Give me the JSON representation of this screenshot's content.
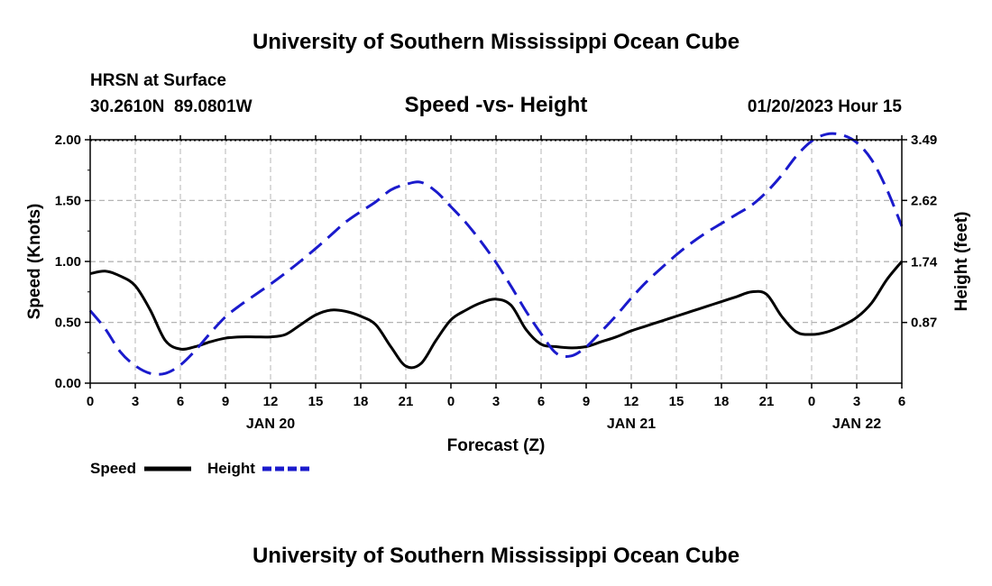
{
  "header": {
    "title": "University of Southern Mississippi Ocean Cube",
    "station": "HRSN at Surface",
    "coords": "30.2610N  89.0801W",
    "chart_title": "Speed -vs- Height",
    "datetime": "01/20/2023 Hour 15"
  },
  "footer": {
    "title": "University of Southern Mississippi Ocean Cube"
  },
  "legend": {
    "speed_label": "Speed",
    "height_label": "Height"
  },
  "colors": {
    "speed": "#000000",
    "height": "#1a1acc",
    "grid": "#b4b4b4"
  },
  "chart_data": {
    "type": "line",
    "title": "Speed -vs- Height",
    "xlabel": "Forecast (Z)",
    "ylabel": "Speed (Knots)",
    "y2label": "Height (feet)",
    "x": [
      0,
      1,
      2,
      3,
      4,
      5,
      6,
      7,
      8,
      9,
      10,
      11,
      12,
      13,
      14,
      15,
      16,
      17,
      18,
      19,
      20,
      21,
      22,
      23,
      24,
      25,
      26,
      27,
      28,
      29,
      30,
      31,
      32,
      33,
      34,
      35,
      36,
      37,
      38,
      39,
      40,
      41,
      42,
      43,
      44,
      45,
      46,
      47,
      48,
      49,
      50,
      51,
      52,
      53,
      54
    ],
    "x_ticks": [
      0,
      3,
      6,
      9,
      12,
      15,
      18,
      21,
      24,
      27,
      30,
      33,
      36,
      39,
      42,
      45,
      48,
      51,
      54
    ],
    "x_tick_labels": [
      "0",
      "3",
      "6",
      "9",
      "12",
      "15",
      "18",
      "21",
      "0",
      "3",
      "6",
      "9",
      "12",
      "15",
      "18",
      "21",
      "0",
      "3",
      "6"
    ],
    "day_labels": [
      {
        "x": 12,
        "label": "JAN 20"
      },
      {
        "x": 36,
        "label": "JAN 21"
      },
      {
        "x": 51,
        "label": "JAN 22"
      }
    ],
    "xlim": [
      0,
      54
    ],
    "ylim": [
      0,
      2.0
    ],
    "y_ticks": [
      0.0,
      0.5,
      1.0,
      1.5,
      2.0
    ],
    "y_tick_labels": [
      "0.00",
      "0.50",
      "1.00",
      "1.50",
      "2.00"
    ],
    "y2lim": [
      0,
      3.49
    ],
    "y2_ticks": [
      0.87,
      1.74,
      2.62,
      3.49
    ],
    "y2_tick_labels": [
      "0.87",
      "1.74",
      "2.62",
      "3.49"
    ],
    "grid": true,
    "legend_position": "bottom-left",
    "series": [
      {
        "name": "Speed",
        "axis": "left",
        "style": "solid",
        "values": [
          0.9,
          0.92,
          0.88,
          0.8,
          0.6,
          0.35,
          0.28,
          0.3,
          0.34,
          0.37,
          0.38,
          0.38,
          0.38,
          0.4,
          0.48,
          0.56,
          0.6,
          0.59,
          0.55,
          0.48,
          0.3,
          0.14,
          0.16,
          0.35,
          0.52,
          0.6,
          0.66,
          0.69,
          0.64,
          0.44,
          0.32,
          0.3,
          0.29,
          0.3,
          0.34,
          0.38,
          0.43,
          0.47,
          0.51,
          0.55,
          0.59,
          0.63,
          0.67,
          0.71,
          0.75,
          0.73,
          0.55,
          0.42,
          0.4,
          0.42,
          0.47,
          0.54,
          0.66,
          0.85,
          1.0
        ]
      },
      {
        "name": "Height",
        "axis": "right",
        "style": "dashed",
        "values": [
          1.04,
          0.78,
          0.45,
          0.25,
          0.14,
          0.14,
          0.26,
          0.47,
          0.72,
          0.95,
          1.12,
          1.27,
          1.42,
          1.58,
          1.75,
          1.93,
          2.12,
          2.31,
          2.46,
          2.6,
          2.77,
          2.85,
          2.88,
          2.75,
          2.53,
          2.3,
          2.03,
          1.73,
          1.39,
          1.03,
          0.71,
          0.43,
          0.39,
          0.52,
          0.74,
          0.97,
          1.22,
          1.45,
          1.65,
          1.84,
          2.01,
          2.16,
          2.29,
          2.42,
          2.55,
          2.74,
          2.98,
          3.26,
          3.47,
          3.57,
          3.56,
          3.45,
          3.2,
          2.78,
          2.25
        ]
      }
    ]
  }
}
